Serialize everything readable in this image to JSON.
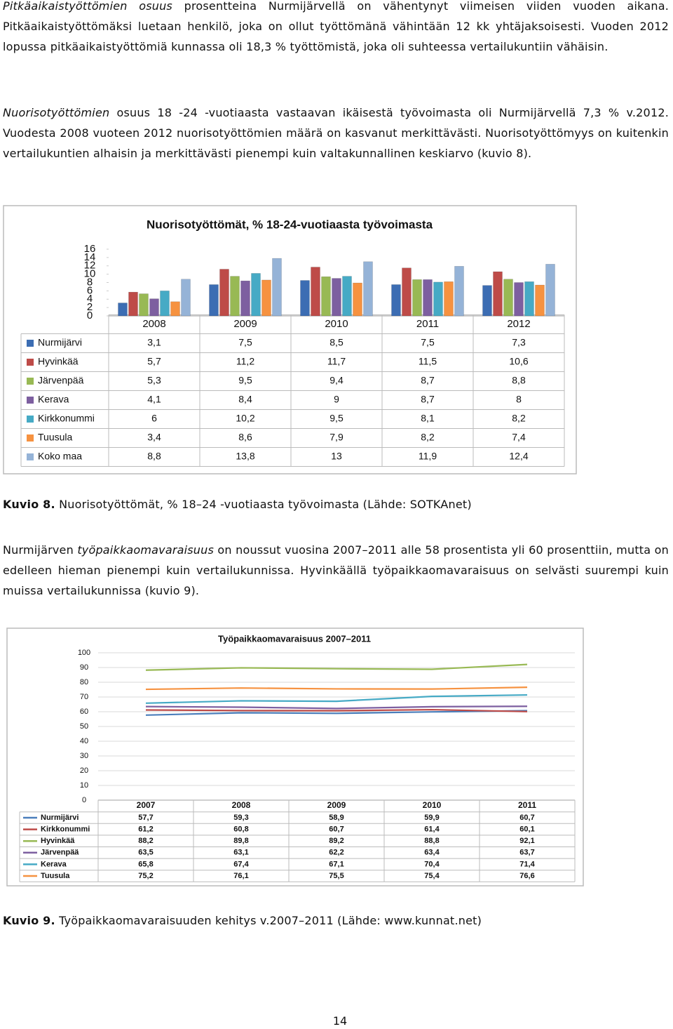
{
  "paragraphs": [
    [
      {
        "text": "Pitkäaikaistyöttömien osuus",
        "italic": true
      },
      {
        "text": " prosentteina Nurmijärvellä on vähentynyt viimeisen viiden vuoden aikana. Pitkäaikaistyöttömäksi luetaan henkilö, joka on ollut työttömänä vähintään 12 kk yhtäjaksoisesti. Vuoden 2012 lopussa pitkäaikaistyöttömiä kunnassa oli 18,3 % työttömistä, joka oli suhteessa vertailukuntiin vähäisin."
      }
    ],
    [
      {
        "text": "Nuorisotyöttömien",
        "italic": true
      },
      {
        "text": " osuus 18 -24 -vuotiaasta vastaavan ikäisestä työvoimasta oli Nurmijärvellä 7,3 % v.2012. Vuodesta 2008 vuoteen 2012 nuorisotyöttömien määrä on kasvanut merkittävästi. Nuorisotyöttömyys on kuitenkin vertailukuntien alhaisin ja merkittävästi pienempi kuin valtakunnallinen keskiarvo (kuvio 8)."
      }
    ],
    [
      {
        "text": "Nurmijärven "
      },
      {
        "text": "työpaikkaomavaraisuus",
        "italic": true
      },
      {
        "text": " on noussut vuosina 2007–2011 alle 58 prosentista yli 60 prosenttiin, mutta on edelleen hieman pienempi kuin vertailukunnissa. Hyvinkäällä työpaikkaomavaraisuus on selvästi suurempi kuin muissa vertailukunnissa (kuvio 9)."
      }
    ]
  ],
  "captions": [
    [
      {
        "text": "Kuvio 8.",
        "bold": true
      },
      {
        "text": " Nuorisotyöttömät, % 18–24 -vuotiaasta työvoimasta (Lähde: SOTKAnet)"
      }
    ],
    [
      {
        "text": "Kuvio 9.",
        "bold": true
      },
      {
        "text": " Työpaikkaomavaraisuuden kehitys v.2007–2011 (Lähde: www.kunnat.net)"
      }
    ]
  ],
  "page_number": "14",
  "chart_data": [
    {
      "type": "bar",
      "title": "Nuorisotyöttömät, % 18-24-vuotiaasta työvoimasta",
      "categories": [
        "2008",
        "2009",
        "2010",
        "2011",
        "2012"
      ],
      "ylim": [
        0,
        16
      ],
      "yticks": [
        0,
        2,
        4,
        6,
        8,
        10,
        12,
        14,
        16
      ],
      "grid": false,
      "series": [
        {
          "name": "Nurmijärvi",
          "color": "#3c6db3",
          "values": [
            3.1,
            7.5,
            8.5,
            7.5,
            7.3
          ],
          "value_labels": [
            "3,1",
            "7,5",
            "8,5",
            "7,5",
            "7,3"
          ]
        },
        {
          "name": "Hyvinkää",
          "color": "#be4b48",
          "values": [
            5.7,
            11.2,
            11.7,
            11.5,
            10.6
          ],
          "value_labels": [
            "5,7",
            "11,2",
            "11,7",
            "11,5",
            "10,6"
          ]
        },
        {
          "name": "Järvenpää",
          "color": "#98b954",
          "values": [
            5.3,
            9.5,
            9.4,
            8.7,
            8.8
          ],
          "value_labels": [
            "5,3",
            "9,5",
            "9,4",
            "8,7",
            "8,8"
          ]
        },
        {
          "name": "Kerava",
          "color": "#7d5fa0",
          "values": [
            4.1,
            8.4,
            9,
            8.7,
            8
          ],
          "value_labels": [
            "4,1",
            "8,4",
            "9",
            "8,7",
            "8"
          ]
        },
        {
          "name": "Kirkkonummi",
          "color": "#46aac5",
          "values": [
            6,
            10.2,
            9.5,
            8.1,
            8.2
          ],
          "value_labels": [
            "6",
            "10,2",
            "9,5",
            "8,1",
            "8,2"
          ]
        },
        {
          "name": "Tuusula",
          "color": "#f69240",
          "values": [
            3.4,
            8.6,
            7.9,
            8.2,
            7.4
          ],
          "value_labels": [
            "3,4",
            "8,6",
            "7,9",
            "8,2",
            "7,4"
          ]
        },
        {
          "name": "Koko maa",
          "color": "#95b3d7",
          "values": [
            8.8,
            13.8,
            13,
            11.9,
            12.4
          ],
          "value_labels": [
            "8,8",
            "13,8",
            "13",
            "11,9",
            "12,4"
          ]
        }
      ]
    },
    {
      "type": "line",
      "title": "Työpaikkaomavaraisuus 2007–2011",
      "categories": [
        "2007",
        "2008",
        "2009",
        "2010",
        "2011"
      ],
      "ylim": [
        0,
        100
      ],
      "yticks": [
        0,
        10,
        20,
        30,
        40,
        50,
        60,
        70,
        80,
        90,
        100
      ],
      "grid": true,
      "series": [
        {
          "name": "Nurmijärvi",
          "color": "#4a7ebb",
          "values": [
            57.7,
            59.3,
            58.9,
            59.9,
            60.7
          ],
          "value_labels": [
            "57,7",
            "59,3",
            "58,9",
            "59,9",
            "60,7"
          ]
        },
        {
          "name": "Kirkkonummi",
          "color": "#be4b48",
          "values": [
            61.2,
            60.8,
            60.7,
            61.4,
            60.1
          ],
          "value_labels": [
            "61,2",
            "60,8",
            "60,7",
            "61,4",
            "60,1"
          ]
        },
        {
          "name": "Hyvinkää",
          "color": "#98b954",
          "values": [
            88.2,
            89.8,
            89.2,
            88.8,
            92.1
          ],
          "value_labels": [
            "88,2",
            "89,8",
            "89,2",
            "88,8",
            "92,1"
          ]
        },
        {
          "name": "Järvenpää",
          "color": "#7d5fa0",
          "values": [
            63.5,
            63.1,
            62.2,
            63.4,
            63.7
          ],
          "value_labels": [
            "63,5",
            "63,1",
            "62,2",
            "63,4",
            "63,7"
          ]
        },
        {
          "name": "Kerava",
          "color": "#46aac5",
          "values": [
            65.8,
            67.4,
            67.1,
            70.4,
            71.4
          ],
          "value_labels": [
            "65,8",
            "67,4",
            "67,1",
            "70,4",
            "71,4"
          ]
        },
        {
          "name": "Tuusula",
          "color": "#f69240",
          "values": [
            75.2,
            76.1,
            75.5,
            75.4,
            76.6
          ],
          "value_labels": [
            "75,2",
            "76,1",
            "75,5",
            "75,4",
            "76,6"
          ]
        }
      ]
    }
  ]
}
